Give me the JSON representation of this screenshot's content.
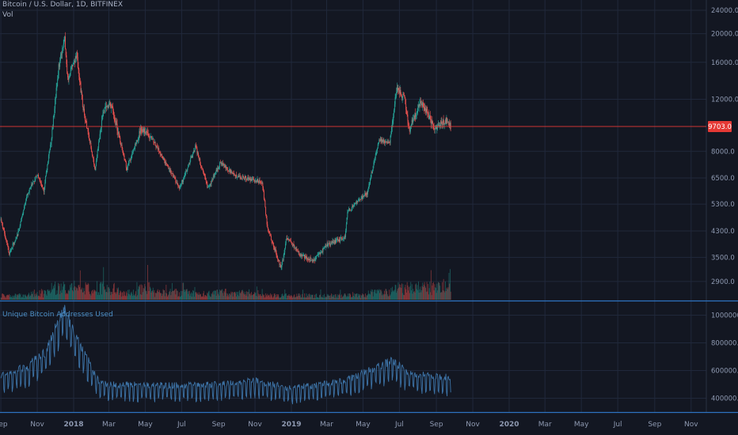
{
  "header": {
    "symbol": "Bitcoin / U.S. Dollar, 1D, BITFINEX",
    "volume_label": "Vol",
    "lower_pane_title": "Unique Bitcoin Addresses Used"
  },
  "colors": {
    "background": "#131722",
    "grid": "#20283b",
    "axis_text": "#8e99b1",
    "up": "#26a69a",
    "down": "#ef5350",
    "price_line": "#e53935",
    "indicator_line": "#3d74a8",
    "pane_separator": "#2d73c0"
  },
  "x_axis": {
    "tick_labels": [
      "Sep",
      "Nov",
      "2018",
      "Mar",
      "May",
      "Jul",
      "Sep",
      "Nov",
      "2019",
      "Mar",
      "May",
      "Jul",
      "Sep",
      "Nov",
      "2020",
      "Mar",
      "May",
      "Jul",
      "Sep",
      "Nov"
    ],
    "bold_labels": [
      "2018",
      "2019",
      "2020"
    ]
  },
  "chart_data": [
    {
      "type": "line",
      "style": "candlestick",
      "pane": "price",
      "scale": "log",
      "y_ticks": [
        "24000.0",
        "20000.0",
        "16000.0",
        "12000.0",
        "8000.0",
        "6500.0",
        "5300.0",
        "4300.0",
        "3500.0",
        "2900.0"
      ],
      "ylim": [
        2500,
        26000
      ],
      "last_price_label": "9703.0",
      "last_price": 9703,
      "approx_close_path": [
        {
          "x": "2017-09-01",
          "y": 4700
        },
        {
          "x": "2017-09-15",
          "y": 3600
        },
        {
          "x": "2017-10-01",
          "y": 4300
        },
        {
          "x": "2017-10-15",
          "y": 5700
        },
        {
          "x": "2017-11-01",
          "y": 6700
        },
        {
          "x": "2017-11-12",
          "y": 5900
        },
        {
          "x": "2017-11-25",
          "y": 9000
        },
        {
          "x": "2017-12-07",
          "y": 15500
        },
        {
          "x": "2017-12-17",
          "y": 19200
        },
        {
          "x": "2017-12-22",
          "y": 14000
        },
        {
          "x": "2018-01-06",
          "y": 17000
        },
        {
          "x": "2018-01-16",
          "y": 11500
        },
        {
          "x": "2018-02-06",
          "y": 7000
        },
        {
          "x": "2018-02-20",
          "y": 11000
        },
        {
          "x": "2018-03-05",
          "y": 11500
        },
        {
          "x": "2018-03-31",
          "y": 7000
        },
        {
          "x": "2018-04-24",
          "y": 9500
        },
        {
          "x": "2018-05-10",
          "y": 9000
        },
        {
          "x": "2018-06-01",
          "y": 7500
        },
        {
          "x": "2018-06-28",
          "y": 6000
        },
        {
          "x": "2018-07-24",
          "y": 8300
        },
        {
          "x": "2018-08-14",
          "y": 6000
        },
        {
          "x": "2018-09-04",
          "y": 7300
        },
        {
          "x": "2018-10-01",
          "y": 6600
        },
        {
          "x": "2018-11-13",
          "y": 6300
        },
        {
          "x": "2018-11-22",
          "y": 4400
        },
        {
          "x": "2018-12-15",
          "y": 3200
        },
        {
          "x": "2018-12-24",
          "y": 4100
        },
        {
          "x": "2019-01-15",
          "y": 3600
        },
        {
          "x": "2019-02-07",
          "y": 3400
        },
        {
          "x": "2019-03-01",
          "y": 3850
        },
        {
          "x": "2019-04-01",
          "y": 4100
        },
        {
          "x": "2019-04-05",
          "y": 5000
        },
        {
          "x": "2019-05-08",
          "y": 5800
        },
        {
          "x": "2019-05-28",
          "y": 8700
        },
        {
          "x": "2019-06-15",
          "y": 8600
        },
        {
          "x": "2019-06-26",
          "y": 13000
        },
        {
          "x": "2019-07-10",
          "y": 12100
        },
        {
          "x": "2019-07-17",
          "y": 9500
        },
        {
          "x": "2019-08-06",
          "y": 11800
        },
        {
          "x": "2019-08-29",
          "y": 9600
        },
        {
          "x": "2019-09-18",
          "y": 10200
        },
        {
          "x": "2019-09-25",
          "y": 9703
        }
      ]
    },
    {
      "type": "line",
      "pane": "indicator",
      "series": [
        {
          "name": "Unique Bitcoin Addresses Used"
        }
      ],
      "y_ticks": [
        "1000000.0",
        "800000.0",
        "600000.0",
        "400000.0"
      ],
      "ylim": [
        300000,
        1100000
      ],
      "approx_values": [
        {
          "x": "2017-09-01",
          "y": 530000
        },
        {
          "x": "2017-10-15",
          "y": 600000
        },
        {
          "x": "2017-11-15",
          "y": 700000
        },
        {
          "x": "2017-12-15",
          "y": 1000000
        },
        {
          "x": "2018-01-15",
          "y": 720000
        },
        {
          "x": "2018-02-15",
          "y": 480000
        },
        {
          "x": "2018-05-01",
          "y": 470000
        },
        {
          "x": "2018-08-01",
          "y": 470000
        },
        {
          "x": "2018-11-01",
          "y": 500000
        },
        {
          "x": "2019-01-01",
          "y": 450000
        },
        {
          "x": "2019-04-01",
          "y": 500000
        },
        {
          "x": "2019-06-20",
          "y": 640000
        },
        {
          "x": "2019-07-15",
          "y": 560000
        },
        {
          "x": "2019-09-25",
          "y": 520000
        }
      ]
    }
  ]
}
